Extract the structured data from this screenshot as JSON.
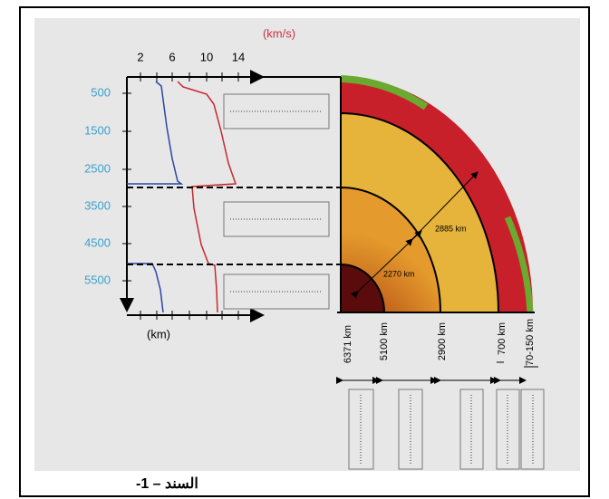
{
  "velocity_unit": "(km/s)",
  "velocity_ticks": [
    "2",
    "6",
    "10",
    "14"
  ],
  "depth_ticks": [
    "500",
    "1500",
    "2500",
    "3500",
    "4500",
    "5500"
  ],
  "depth_unit": "(km)",
  "distances": [
    "2885 km",
    "2270 km"
  ],
  "boundaries": [
    "6371 km",
    "5100 km",
    "2900 km",
    "700 km",
    "70-150 km"
  ],
  "caption": "السند – 1-"
}
